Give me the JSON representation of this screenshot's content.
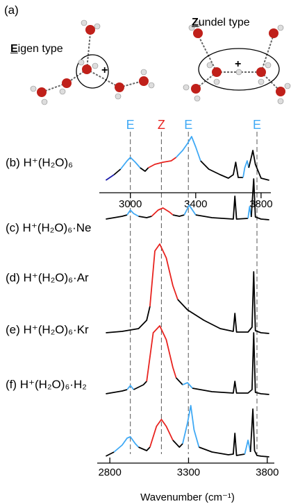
{
  "figure": {
    "label": "(a)",
    "eigen": "Eigen type",
    "zundel": "Zundel type"
  },
  "chart_data": {
    "type": "line",
    "xlim": [
      2810,
      3860
    ],
    "xticks": [
      3000,
      3400,
      3800
    ],
    "bottom_axis": {
      "xlim": [
        2720,
        3845
      ],
      "xticks": [
        2800,
        3300,
        3800
      ],
      "label": "Wavenumber (cm⁻¹)"
    },
    "annotations": [
      {
        "text": "E",
        "x": 3000,
        "color": "#3fa9f5"
      },
      {
        "text": "Z",
        "x": 3190,
        "color": "#e8231f"
      },
      {
        "text": "E",
        "x": 3355,
        "color": "#3fa9f5"
      },
      {
        "text": "E",
        "x": 3775,
        "color": "#3fa9f5"
      }
    ],
    "panels": [
      {
        "label": "(b) H⁺(H₂O)₆",
        "segments": [
          {
            "color": "#1a1aaa",
            "x": [
              2850,
              2900
            ],
            "values": [
              2,
              10
            ]
          },
          {
            "color": "#000000",
            "x": [
              2900,
              2940
            ],
            "values": [
              10,
              18
            ]
          },
          {
            "color": "#3fa9f5",
            "x": [
              2940,
              2980,
              3000,
              3030,
              3060
            ],
            "values": [
              18,
              30,
              35,
              28,
              20
            ]
          },
          {
            "color": "#000000",
            "x": [
              3060,
              3090,
              3110
            ],
            "values": [
              20,
              15,
              20
            ]
          },
          {
            "color": "#e8231f",
            "x": [
              3110,
              3150,
              3200,
              3250,
              3280
            ],
            "values": [
              20,
              25,
              28,
              30,
              35
            ]
          },
          {
            "color": "#3fa9f5",
            "x": [
              3280,
              3320,
              3350,
              3375,
              3400,
              3430
            ],
            "values": [
              35,
              45,
              55,
              65,
              50,
              30
            ]
          },
          {
            "color": "#000000",
            "x": [
              3430,
              3480,
              3550,
              3600,
              3630,
              3645,
              3660,
              3690
            ],
            "values": [
              30,
              18,
              10,
              5,
              10,
              28,
              6,
              6
            ]
          },
          {
            "color": "#3fa9f5",
            "x": [
              3690,
              3700,
              3715,
              3725
            ],
            "values": [
              6,
              20,
              30,
              20
            ]
          },
          {
            "color": "#000000",
            "x": [
              3725,
              3740,
              3750,
              3765,
              3800,
              3850
            ],
            "values": [
              20,
              35,
              45,
              25,
              5,
              2
            ]
          }
        ]
      },
      {
        "label": "(c) H⁺(H₂O)₆·Ne",
        "segments": [
          {
            "color": "#000000",
            "x": [
              2850,
              2900,
              2950,
              2980
            ],
            "values": [
              2,
              4,
              6,
              8
            ]
          },
          {
            "color": "#3fa9f5",
            "x": [
              2980,
              3000,
              3020,
              3050
            ],
            "values": [
              8,
              15,
              10,
              6
            ]
          },
          {
            "color": "#000000",
            "x": [
              3050,
              3100,
              3130
            ],
            "values": [
              6,
              4,
              6
            ]
          },
          {
            "color": "#e8231f",
            "x": [
              3130,
              3170,
              3200,
              3240,
              3260
            ],
            "values": [
              6,
              15,
              18,
              12,
              8
            ]
          },
          {
            "color": "#000000",
            "x": [
              3260,
              3300,
              3330
            ],
            "values": [
              8,
              6,
              8
            ]
          },
          {
            "color": "#3fa9f5",
            "x": [
              3330,
              3360,
              3380,
              3400
            ],
            "values": [
              8,
              22,
              15,
              8
            ]
          },
          {
            "color": "#000000",
            "x": [
              3400,
              3500,
              3630,
              3640,
              3650,
              3720
            ],
            "values": [
              8,
              4,
              2,
              35,
              2,
              3
            ]
          },
          {
            "color": "#3fa9f5",
            "x": [
              3720,
              3730,
              3740
            ],
            "values": [
              3,
              20,
              5
            ]
          },
          {
            "color": "#000000",
            "x": [
              3740,
              3755,
              3765,
              3800,
              3850
            ],
            "values": [
              5,
              60,
              5,
              2,
              1
            ]
          }
        ]
      },
      {
        "label": "(d) H⁺(H₂O)₆·Ar",
        "segments": [
          {
            "color": "#000000",
            "x": [
              2850,
              2950,
              3000,
              3050,
              3100,
              3120
            ],
            "values": [
              2,
              4,
              6,
              8,
              20,
              40
            ]
          },
          {
            "color": "#e8231f",
            "x": [
              3120,
              3150,
              3180,
              3220,
              3260,
              3290
            ],
            "values": [
              40,
              120,
              130,
              110,
              70,
              50
            ]
          },
          {
            "color": "#000000",
            "x": [
              3290,
              3350,
              3450,
              3550,
              3630,
              3640,
              3650,
              3720,
              3745,
              3755,
              3765,
              3800,
              3850
            ],
            "values": [
              50,
              35,
              20,
              8,
              4,
              30,
              3,
              3,
              10,
              90,
              5,
              2,
              1
            ]
          }
        ]
      },
      {
        "label": "(e) H⁺(H₂O)₆·Kr",
        "segments": [
          {
            "color": "#000000",
            "x": [
              2850,
              2950,
              2980
            ],
            "values": [
              2,
              6,
              8
            ]
          },
          {
            "color": "#3fa9f5",
            "x": [
              2980,
              3000,
              3020
            ],
            "values": [
              8,
              14,
              8
            ]
          },
          {
            "color": "#000000",
            "x": [
              3020,
              3080,
              3100
            ],
            "values": [
              8,
              15,
              20
            ]
          },
          {
            "color": "#e8231f",
            "x": [
              3100,
              3140,
              3180,
              3220,
              3260,
              3280
            ],
            "values": [
              20,
              90,
              100,
              80,
              40,
              25
            ]
          },
          {
            "color": "#000000",
            "x": [
              3280,
              3320
            ],
            "values": [
              25,
              15
            ]
          },
          {
            "color": "#3fa9f5",
            "x": [
              3320,
              3350,
              3380
            ],
            "values": [
              15,
              18,
              10
            ]
          },
          {
            "color": "#000000",
            "x": [
              3380,
              3500,
              3630,
              3640,
              3650,
              3720,
              3745,
              3755,
              3765,
              3800,
              3850
            ],
            "values": [
              10,
              5,
              3,
              20,
              3,
              3,
              8,
              90,
              4,
              2,
              1
            ]
          }
        ]
      },
      {
        "label": "(f) H⁺(H₂O)₆·H₂",
        "segments": [
          {
            "color": "#000000",
            "x": [
              2850,
              2900
            ],
            "values": [
              2,
              8
            ]
          },
          {
            "color": "#3fa9f5",
            "x": [
              2900,
              2950,
              2980,
              3000,
              3030,
              3050
            ],
            "values": [
              8,
              18,
              28,
              30,
              20,
              15
            ]
          },
          {
            "color": "#000000",
            "x": [
              3050,
              3100,
              3120
            ],
            "values": [
              15,
              10,
              15
            ]
          },
          {
            "color": "#e8231f",
            "x": [
              3120,
              3160,
              3190,
              3220,
              3260
            ],
            "values": [
              15,
              45,
              55,
              45,
              25
            ]
          },
          {
            "color": "#000000",
            "x": [
              3260,
              3300,
              3320
            ],
            "values": [
              25,
              15,
              20
            ]
          },
          {
            "color": "#3fa9f5",
            "x": [
              3320,
              3350,
              3370,
              3390,
              3420
            ],
            "values": [
              20,
              50,
              75,
              40,
              15
            ]
          },
          {
            "color": "#000000",
            "x": [
              3420,
              3500,
              3600,
              3630,
              3640,
              3650,
              3700
            ],
            "values": [
              15,
              8,
              4,
              5,
              35,
              3,
              5
            ]
          },
          {
            "color": "#3fa9f5",
            "x": [
              3700,
              3720,
              3735
            ],
            "values": [
              5,
              25,
              8
            ]
          },
          {
            "color": "#000000",
            "x": [
              3735,
              3750,
              3760,
              3775,
              3800,
              3850
            ],
            "values": [
              8,
              70,
              10,
              3,
              2,
              1
            ]
          }
        ]
      }
    ]
  }
}
